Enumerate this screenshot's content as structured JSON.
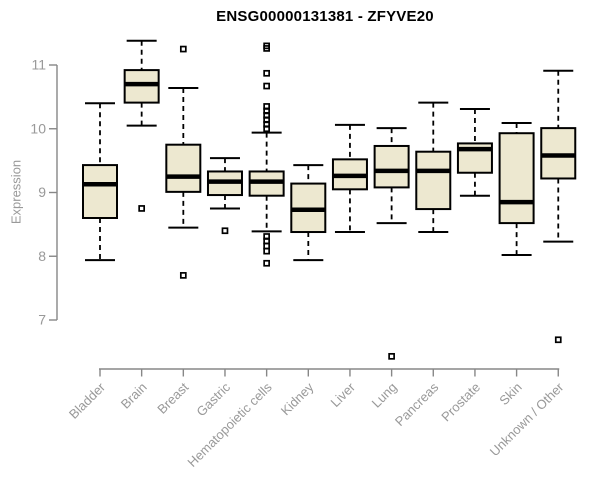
{
  "chart_data": {
    "type": "boxplot",
    "title": "ENSG00000131381 - ZFYVE20",
    "xlabel": "",
    "ylabel": "Expression",
    "y_ticks": [
      7,
      8,
      9,
      10,
      11
    ],
    "ylim": [
      6.1,
      11.5
    ],
    "grid": false,
    "legend": false,
    "categories": [
      "Bladder",
      "Brain",
      "Breast",
      "Gastric",
      "Hematopoietic cells",
      "Kidney",
      "Liver",
      "Lung",
      "Pancreas",
      "Prostate",
      "Skin",
      "Unknown / Other"
    ],
    "series": [
      {
        "category": "Bladder",
        "low": 7.94,
        "q1": 8.6,
        "median": 9.13,
        "q3": 9.43,
        "high": 10.4,
        "outliers": []
      },
      {
        "category": "Brain",
        "low": 10.05,
        "q1": 10.41,
        "median": 10.7,
        "q3": 10.92,
        "high": 11.38,
        "outliers": [
          8.75
        ]
      },
      {
        "category": "Breast",
        "low": 8.45,
        "q1": 9.01,
        "median": 9.25,
        "q3": 9.75,
        "high": 10.64,
        "outliers": [
          11.25,
          7.7
        ]
      },
      {
        "category": "Gastric",
        "low": 8.75,
        "q1": 8.96,
        "median": 9.17,
        "q3": 9.33,
        "high": 9.54,
        "outliers": [
          8.4
        ]
      },
      {
        "category": "Hematopoietic cells",
        "low": 8.39,
        "q1": 8.95,
        "median": 9.17,
        "q3": 9.33,
        "high": 9.94,
        "outliers": [
          11.3,
          11.26,
          10.87,
          10.67,
          10.35,
          10.28,
          10.21,
          10.14,
          10.07,
          10.0,
          8.31,
          8.24,
          8.16,
          8.08,
          7.89
        ]
      },
      {
        "category": "Kidney",
        "low": 7.94,
        "q1": 8.38,
        "median": 8.73,
        "q3": 9.14,
        "high": 9.43,
        "outliers": []
      },
      {
        "category": "Liver",
        "low": 8.38,
        "q1": 9.05,
        "median": 9.26,
        "q3": 9.52,
        "high": 10.06,
        "outliers": []
      },
      {
        "category": "Lung",
        "low": 8.52,
        "q1": 9.08,
        "median": 9.34,
        "q3": 9.73,
        "high": 10.01,
        "outliers": [
          6.43
        ]
      },
      {
        "category": "Pancreas",
        "low": 8.38,
        "q1": 8.74,
        "median": 9.34,
        "q3": 9.64,
        "high": 10.41,
        "outliers": []
      },
      {
        "category": "Prostate",
        "low": 8.95,
        "q1": 9.31,
        "median": 9.68,
        "q3": 9.77,
        "high": 10.31,
        "outliers": []
      },
      {
        "category": "Skin",
        "low": 8.02,
        "q1": 8.52,
        "median": 8.85,
        "q3": 9.93,
        "high": 10.09,
        "outliers": []
      },
      {
        "category": "Unknown / Other",
        "low": 8.23,
        "q1": 9.22,
        "median": 9.58,
        "q3": 10.01,
        "high": 10.91,
        "outliers": [
          6.69
        ]
      }
    ],
    "style": {
      "box_fill": "#EDE8D0",
      "box_border": "#000000",
      "median_color": "#000000",
      "whisker_color": "#000000",
      "outlier_color": "#000000",
      "axis_line_color": "#878787",
      "tick_label_color": "#999999",
      "title_color": "#000000"
    }
  }
}
